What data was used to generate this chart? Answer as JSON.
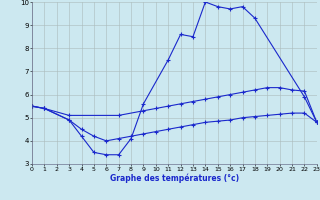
{
  "bg_color": "#cce8f0",
  "grid_color": "#aabbbb",
  "line_color": "#1a28cc",
  "xlabel": "Graphe des températures (°c)",
  "xlim": [
    0,
    23
  ],
  "ylim": [
    3,
    10
  ],
  "xticks": [
    0,
    1,
    2,
    3,
    4,
    5,
    6,
    7,
    8,
    9,
    10,
    11,
    12,
    13,
    14,
    15,
    16,
    17,
    18,
    19,
    20,
    21,
    22,
    23
  ],
  "yticks": [
    3,
    4,
    5,
    6,
    7,
    8,
    9,
    10
  ],
  "line1_x": [
    0,
    1,
    3,
    4,
    5,
    6,
    7,
    8,
    9,
    11,
    12,
    13,
    14,
    15,
    16,
    17,
    18,
    22,
    23
  ],
  "line1_y": [
    5.5,
    5.4,
    4.9,
    4.2,
    3.5,
    3.4,
    3.4,
    4.1,
    5.6,
    7.5,
    8.6,
    8.5,
    10.0,
    9.8,
    9.7,
    9.8,
    9.3,
    5.9,
    4.8
  ],
  "line2_x": [
    0,
    1,
    3,
    7,
    9,
    10,
    11,
    12,
    13,
    14,
    15,
    16,
    17,
    18,
    19,
    20,
    21,
    22,
    23
  ],
  "line2_y": [
    5.5,
    5.4,
    5.1,
    5.1,
    5.3,
    5.4,
    5.5,
    5.6,
    5.7,
    5.8,
    5.9,
    6.0,
    6.1,
    6.2,
    6.3,
    6.3,
    6.2,
    6.15,
    4.8
  ],
  "line3_x": [
    0,
    1,
    3,
    4,
    5,
    6,
    7,
    8,
    9,
    10,
    11,
    12,
    13,
    14,
    15,
    16,
    17,
    18,
    19,
    20,
    21,
    22,
    23
  ],
  "line3_y": [
    5.5,
    5.4,
    4.9,
    4.5,
    4.2,
    4.0,
    4.1,
    4.2,
    4.3,
    4.4,
    4.5,
    4.6,
    4.7,
    4.8,
    4.85,
    4.9,
    5.0,
    5.05,
    5.1,
    5.15,
    5.2,
    5.2,
    4.8
  ]
}
